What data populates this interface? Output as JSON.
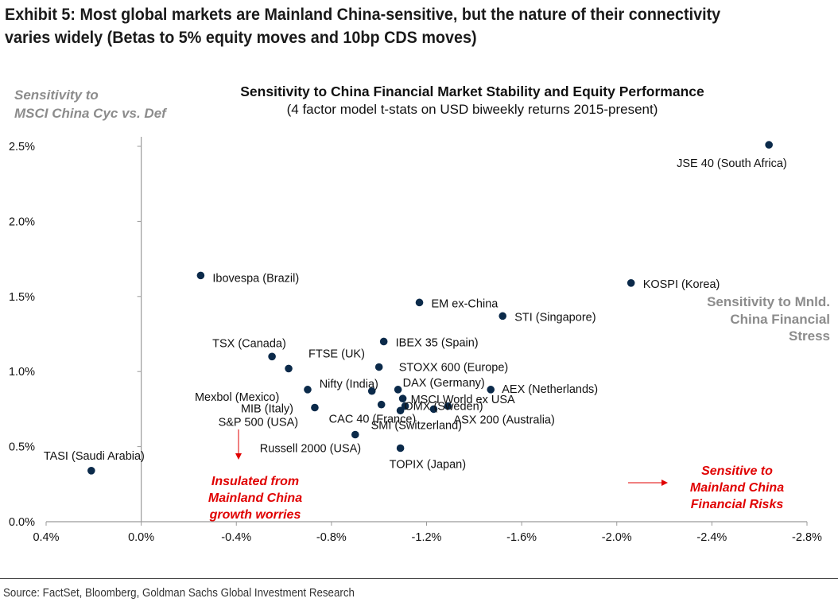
{
  "exhibit": {
    "title": "Exhibit 5: Most global markets are Mainland China-sensitive, but the nature of their connectivity varies widely (Betas to 5% equity moves and 10bp CDS moves)",
    "source": "Source: FactSet, Bloomberg, Goldman Sachs Global Investment Research"
  },
  "colors": {
    "point": "#0b2a4a",
    "axis_label_gray": "#8c8c8c",
    "annotation_red": "#e00000",
    "axis_line": "#9a9a9a"
  },
  "chart_data": {
    "type": "scatter",
    "title": "Sensitivity to China Financial Market Stability and Equity Performance",
    "subtitle": "(4 factor model t-stats on USD biweekly returns 2015-present)",
    "xlabel": "Sensitivity to Mnld. China Financial Stress",
    "ylabel": "Sensitivity to MSCI China Cyc vs. Def",
    "xlim": [
      0.4,
      -2.8
    ],
    "ylim": [
      0.0,
      2.6
    ],
    "x_reversed": true,
    "x_ticks": [
      0.4,
      0.0,
      -0.4,
      -0.8,
      -1.2,
      -1.6,
      -2.0,
      -2.4,
      -2.8
    ],
    "x_tick_labels": [
      "0.4%",
      "0.0%",
      "-0.4%",
      "-0.8%",
      "-1.2%",
      "-1.6%",
      "-2.0%",
      "-2.4%",
      "-2.8%"
    ],
    "y_ticks": [
      0.0,
      0.5,
      1.0,
      1.5,
      2.0,
      2.5
    ],
    "y_tick_labels": [
      "0.0%",
      "0.5%",
      "1.0%",
      "1.5%",
      "2.0%",
      "2.5%"
    ],
    "grid": false,
    "points": [
      {
        "label": "JSE 40 (South Africa)",
        "x": -2.64,
        "y": 2.51
      },
      {
        "label": "Ibovespa (Brazil)",
        "x": -0.25,
        "y": 1.64
      },
      {
        "label": "KOSPI (Korea)",
        "x": -2.06,
        "y": 1.59
      },
      {
        "label": "EM ex-China",
        "x": -1.17,
        "y": 1.46
      },
      {
        "label": "STI (Singapore)",
        "x": -1.52,
        "y": 1.37
      },
      {
        "label": "IBEX 35 (Spain)",
        "x": -1.02,
        "y": 1.2
      },
      {
        "label": "TSX (Canada)",
        "x": -0.55,
        "y": 1.1
      },
      {
        "label": "FTSE (UK)",
        "x": -0.62,
        "y": 1.02
      },
      {
        "label": "STOXX 600 (Europe)",
        "x": -1.0,
        "y": 1.03
      },
      {
        "label": "Mexbol (Mexico)",
        "x": -0.7,
        "y": 0.88
      },
      {
        "label": "Nifty (India)",
        "x": -0.97,
        "y": 0.87
      },
      {
        "label": "DAX (Germany)",
        "x": -1.08,
        "y": 0.88
      },
      {
        "label": "AEX (Netherlands)",
        "x": -1.47,
        "y": 0.88
      },
      {
        "label": "MSCI World ex USA",
        "x": -1.1,
        "y": 0.82
      },
      {
        "label": "MIB (Italy)",
        "x": -0.73,
        "y": 0.76
      },
      {
        "label": "CAC 40 (France)",
        "x": -1.01,
        "y": 0.78
      },
      {
        "label": "OMX (Sweden)",
        "x": -1.29,
        "y": 0.77
      },
      {
        "label": "SMI (Switzerland)",
        "x": -1.11,
        "y": 0.77
      },
      {
        "label": "ASX 200 (Australia)",
        "x": -1.23,
        "y": 0.75
      },
      {
        "label": "S&P 500 (USA)",
        "x": -1.09,
        "y": 0.74
      },
      {
        "label": "Russell 2000 (USA)",
        "x": -0.9,
        "y": 0.58
      },
      {
        "label": "TOPIX (Japan)",
        "x": -1.09,
        "y": 0.49
      },
      {
        "label": "TASI (Saudi Arabia)",
        "x": 0.21,
        "y": 0.34
      }
    ],
    "annotations": [
      {
        "text": [
          "Insulated from",
          "Mainland China",
          "growth worries"
        ]
      },
      {
        "text": [
          "Sensitive to",
          "Mainland China",
          "Financial Risks"
        ]
      }
    ]
  }
}
